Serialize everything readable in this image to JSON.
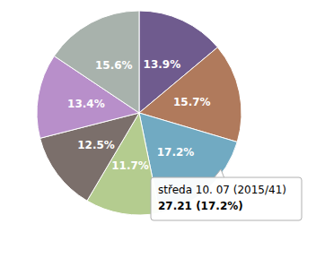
{
  "chart_data": {
    "type": "pie",
    "values": [
      13.9,
      15.7,
      17.2,
      11.7,
      12.5,
      13.4,
      15.6
    ],
    "value_labels": [
      "13.9%",
      "15.7%",
      "17.2%",
      "11.7%",
      "12.5%",
      "13.4%",
      "15.6%"
    ],
    "colors": [
      "#6f5b8e",
      "#b07a5c",
      "#71aac2",
      "#b4cc8f",
      "#7b6f6b",
      "#b88fca",
      "#a8b2ac"
    ],
    "data_labels": true,
    "annotations": [
      {
        "slice": 2,
        "lines": [
          "středa 10. 07 (2015/41)",
          "27.21 (17.2%)"
        ]
      }
    ]
  }
}
